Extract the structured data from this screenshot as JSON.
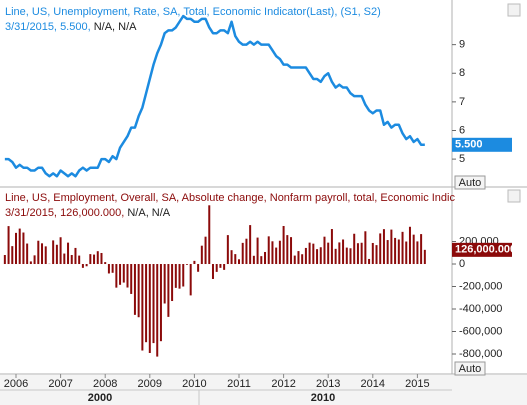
{
  "chart_data": [
    {
      "type": "line",
      "legend": {
        "title": "Line, US, Unemployment, Rate, SA, Total, Economic Indicator(Last), (S1, S2)",
        "date": "3/31/2015,",
        "value_text": "5.500,",
        "extra": "N/A, N/A"
      },
      "last_value_label": "5.500",
      "autoscale_button": "Auto",
      "color": "#1c8be0",
      "ylim": [
        4.06,
        10.56
      ],
      "yticks": [
        5,
        6,
        7,
        8,
        9
      ],
      "values": [
        5.0,
        5.0,
        4.9,
        4.7,
        4.8,
        4.7,
        4.7,
        4.6,
        4.6,
        4.7,
        4.7,
        4.5,
        4.4,
        4.5,
        4.4,
        4.6,
        4.5,
        4.4,
        4.5,
        4.4,
        4.6,
        4.7,
        4.6,
        4.7,
        4.7,
        4.7,
        5.0,
        5.0,
        4.9,
        5.1,
        5.0,
        5.4,
        5.6,
        5.8,
        6.1,
        6.1,
        6.5,
        6.8,
        7.3,
        7.8,
        8.3,
        8.7,
        9.0,
        9.4,
        9.5,
        9.5,
        9.6,
        9.8,
        10.0,
        9.9,
        9.9,
        9.8,
        9.8,
        9.9,
        9.9,
        9.6,
        9.4,
        9.4,
        9.5,
        9.5,
        9.4,
        9.8,
        9.3,
        9.1,
        9.0,
        9.0,
        9.1,
        9.0,
        9.1,
        9.0,
        9.0,
        9.0,
        8.8,
        8.6,
        8.5,
        8.3,
        8.3,
        8.2,
        8.2,
        8.2,
        8.2,
        8.2,
        8.0,
        7.8,
        7.8,
        7.7,
        7.9,
        8.0,
        7.7,
        7.5,
        7.6,
        7.5,
        7.5,
        7.3,
        7.2,
        7.2,
        7.2,
        6.9,
        6.7,
        6.6,
        6.7,
        6.7,
        6.2,
        6.3,
        6.1,
        6.2,
        6.2,
        5.9,
        5.7,
        5.8,
        5.6,
        5.7,
        5.5,
        5.5
      ]
    },
    {
      "type": "bar",
      "legend": {
        "title": "Line, US, Employment, Overall, SA, Absolute change, Nonfarm payroll, total, Economic Indic",
        "date": "3/31/2015,",
        "value_text": "126,000.000,",
        "extra": "N/A, N/A"
      },
      "last_value_label": "126,000.000",
      "autoscale_button": "Auto",
      "color": "#8b0a0a",
      "ylim": [
        -960000,
        658000
      ],
      "yticks": [
        {
          "value": 200000,
          "label": "200,000"
        },
        0,
        {
          "value": -200000,
          "label": "-200,000"
        },
        {
          "value": -400000,
          "label": "-400,000"
        },
        {
          "value": -600000,
          "label": "-600,000"
        },
        {
          "value": -800000,
          "label": "-800,000"
        }
      ],
      "values": [
        80000,
        337000,
        159000,
        277000,
        315000,
        280000,
        182000,
        23000,
        77000,
        207000,
        184000,
        157000,
        2000,
        210000,
        171000,
        238000,
        93000,
        190000,
        80000,
        143000,
        75000,
        -34000,
        -20000,
        88000,
        84000,
        114000,
        98000,
        17000,
        -84000,
        -78000,
        -210000,
        -185000,
        -165000,
        -209000,
        -266000,
        -452000,
        -473000,
        -769000,
        -695000,
        -791000,
        -703000,
        -823000,
        -686000,
        -351000,
        -470000,
        -329000,
        -212000,
        -219000,
        -200000,
        -7000,
        -279000,
        28000,
        -69000,
        163000,
        243000,
        522000,
        -133000,
        -70000,
        -34000,
        -52000,
        257000,
        123000,
        88000,
        42000,
        188000,
        225000,
        346000,
        73000,
        235000,
        70000,
        107000,
        246000,
        202000,
        146000,
        207000,
        338000,
        257000,
        239000,
        75000,
        115000,
        87000,
        143000,
        190000,
        181000,
        132000,
        149000,
        243000,
        190000,
        311000,
        135000,
        192000,
        218000,
        146000,
        140000,
        269000,
        185000,
        189000,
        291000,
        45000,
        187000,
        168000,
        272000,
        310000,
        213000,
        306000,
        232000,
        218000,
        286000,
        200000,
        331000,
        261000,
        201000,
        266000,
        126000
      ]
    }
  ],
  "x_axis": {
    "year_labels": [
      "2006",
      "2007",
      "2008",
      "2009",
      "2010",
      "2011",
      "2012",
      "2013",
      "2014",
      "2015"
    ],
    "decade_labels": [
      "2000",
      "2010"
    ]
  }
}
